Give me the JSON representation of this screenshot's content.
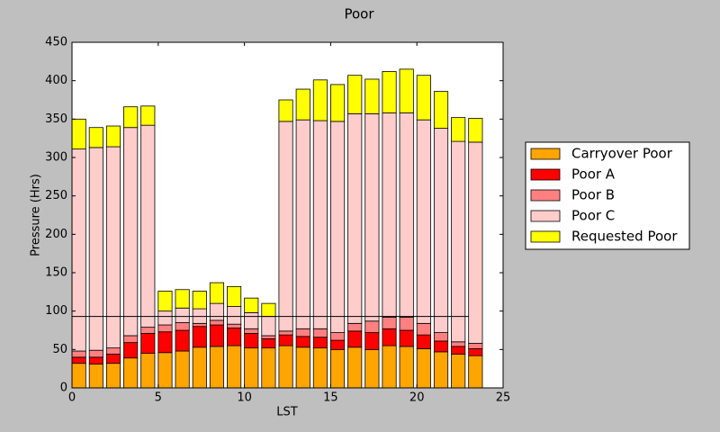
{
  "chart_data": {
    "type": "stacked_bar",
    "title": "Poor",
    "xlabel": "LST",
    "ylabel": "Pressure (Hrs)",
    "x": [
      0,
      1,
      2,
      3,
      4,
      5,
      6,
      7,
      8,
      9,
      10,
      11,
      12,
      13,
      14,
      15,
      16,
      17,
      18,
      19,
      20,
      21,
      22,
      23
    ],
    "bar_width": 0.8,
    "series": [
      {
        "name": "Carryover Poor",
        "color": "#ffa500",
        "values": [
          32,
          31,
          32,
          39,
          45,
          46,
          48,
          53,
          54,
          55,
          52,
          52,
          55,
          53,
          52,
          50,
          53,
          50,
          55,
          54,
          51,
          47,
          44,
          42
        ]
      },
      {
        "name": "Poor A",
        "color": "#ff0000",
        "values": [
          8,
          9,
          12,
          20,
          26,
          27,
          27,
          27,
          28,
          23,
          19,
          12,
          14,
          14,
          14,
          12,
          21,
          22,
          22,
          21,
          18,
          14,
          10,
          9
        ]
      },
      {
        "name": "Poor B",
        "color": "#ff8080",
        "values": [
          8,
          9,
          8,
          9,
          8,
          9,
          10,
          4,
          6,
          5,
          6,
          4,
          5,
          10,
          11,
          10,
          10,
          15,
          15,
          17,
          15,
          11,
          6,
          7
        ]
      },
      {
        "name": "Poor C",
        "color": "#ffcccc",
        "values": [
          263,
          264,
          262,
          271,
          263,
          18,
          19,
          19,
          22,
          23,
          21,
          25,
          273,
          272,
          271,
          275,
          273,
          270,
          266,
          266,
          265,
          266,
          261,
          262
        ]
      },
      {
        "name": "Requested Poor",
        "color": "#ffff00",
        "values": [
          39,
          26,
          27,
          27,
          25,
          26,
          24,
          23,
          27,
          26,
          19,
          17,
          28,
          40,
          53,
          48,
          50,
          45,
          54,
          57,
          58,
          48,
          31,
          31
        ]
      }
    ],
    "hline": {
      "y": 93,
      "xmin": 0,
      "xmax": 23
    },
    "xlim": [
      0,
      25
    ],
    "xticks": [
      0,
      5,
      10,
      15,
      20,
      25
    ],
    "ylim": [
      0,
      450
    ],
    "yticks": [
      0,
      50,
      100,
      150,
      200,
      250,
      300,
      350,
      400,
      450
    ]
  }
}
